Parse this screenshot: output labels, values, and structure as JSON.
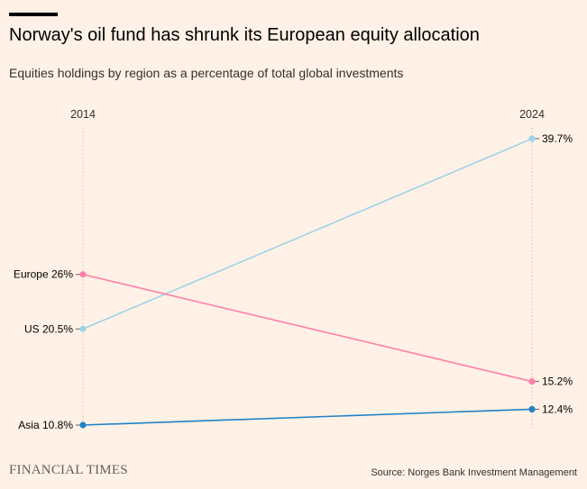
{
  "header": {
    "title": "Norway's oil fund has shrunk its European equity allocation",
    "subtitle": "Equities holdings by region as a percentage of total global investments"
  },
  "chart_data": {
    "type": "line",
    "x": [
      "2014",
      "2024"
    ],
    "ylim": [
      10,
      40
    ],
    "grid": false,
    "series": [
      {
        "name": "US",
        "values": [
          20.5,
          39.7
        ],
        "start_label": "US 20.5%",
        "end_label": "39.7%",
        "color": "#9ed4ea"
      },
      {
        "name": "Europe",
        "values": [
          26,
          15.2
        ],
        "start_label": "Europe 26%",
        "end_label": "15.2%",
        "color": "#ff7fab"
      },
      {
        "name": "Asia",
        "values": [
          10.8,
          12.4
        ],
        "start_label": "Asia 10.8%",
        "end_label": "12.4%",
        "color": "#1f82c8"
      }
    ]
  },
  "footer": {
    "logo": "FINANCIAL TIMES",
    "source": "Source: Norges Bank Investment Management"
  }
}
